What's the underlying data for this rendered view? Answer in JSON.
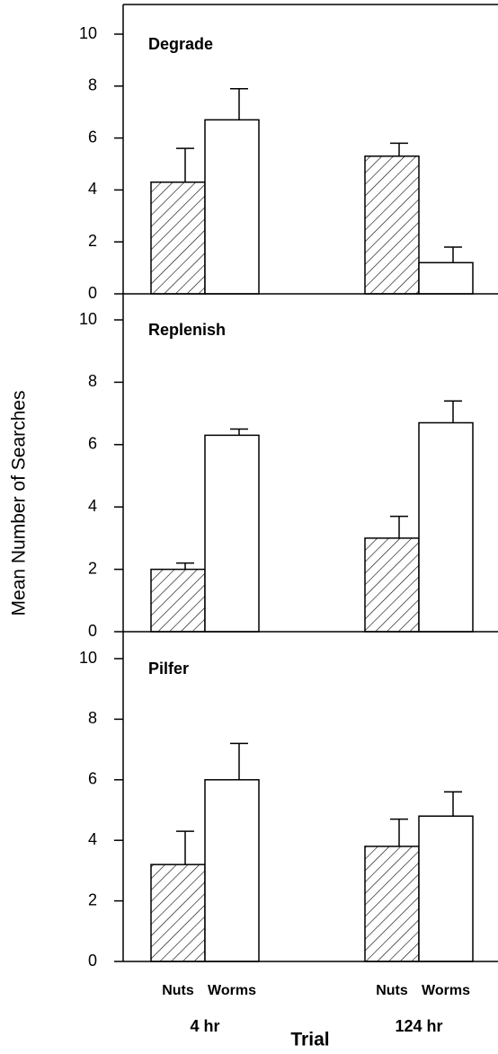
{
  "chart_data": [
    {
      "type": "bar",
      "title": "Degrade",
      "ylim": [
        0,
        10
      ],
      "yticks": [
        0,
        2,
        4,
        6,
        8,
        10
      ],
      "series": [
        {
          "hatch": true,
          "color": "#ffffff",
          "values": [
            4.3,
            5.3
          ],
          "errors": [
            1.3,
            0.5
          ]
        },
        {
          "hatch": false,
          "color": "#ffffff",
          "values": [
            6.7,
            1.2
          ],
          "errors": [
            1.2,
            0.6
          ]
        }
      ]
    },
    {
      "type": "bar",
      "title": "Replenish",
      "ylabel": "Mean Number of Searches",
      "ylim": [
        0,
        10
      ],
      "yticks": [
        0,
        2,
        4,
        6,
        8,
        10
      ],
      "series": [
        {
          "hatch": true,
          "color": "#ffffff",
          "values": [
            2.0,
            3.0
          ],
          "errors": [
            0.2,
            0.7
          ]
        },
        {
          "hatch": false,
          "color": "#ffffff",
          "values": [
            6.3,
            6.7
          ],
          "errors": [
            0.2,
            0.7
          ]
        }
      ]
    },
    {
      "type": "bar",
      "title": "Pilfer",
      "xlabel": "Trial",
      "categories": [
        "4 hr",
        "124 hr"
      ],
      "ylim": [
        0,
        10
      ],
      "yticks": [
        0,
        2,
        4,
        6,
        8,
        10
      ],
      "series": [
        {
          "name": "Nuts",
          "hatch": true,
          "color": "#ffffff",
          "values": [
            3.2,
            3.8
          ],
          "errors": [
            1.1,
            0.9
          ]
        },
        {
          "name": "Worms",
          "hatch": false,
          "color": "#ffffff",
          "values": [
            6.0,
            4.8
          ],
          "errors": [
            1.2,
            0.8
          ]
        }
      ]
    }
  ]
}
